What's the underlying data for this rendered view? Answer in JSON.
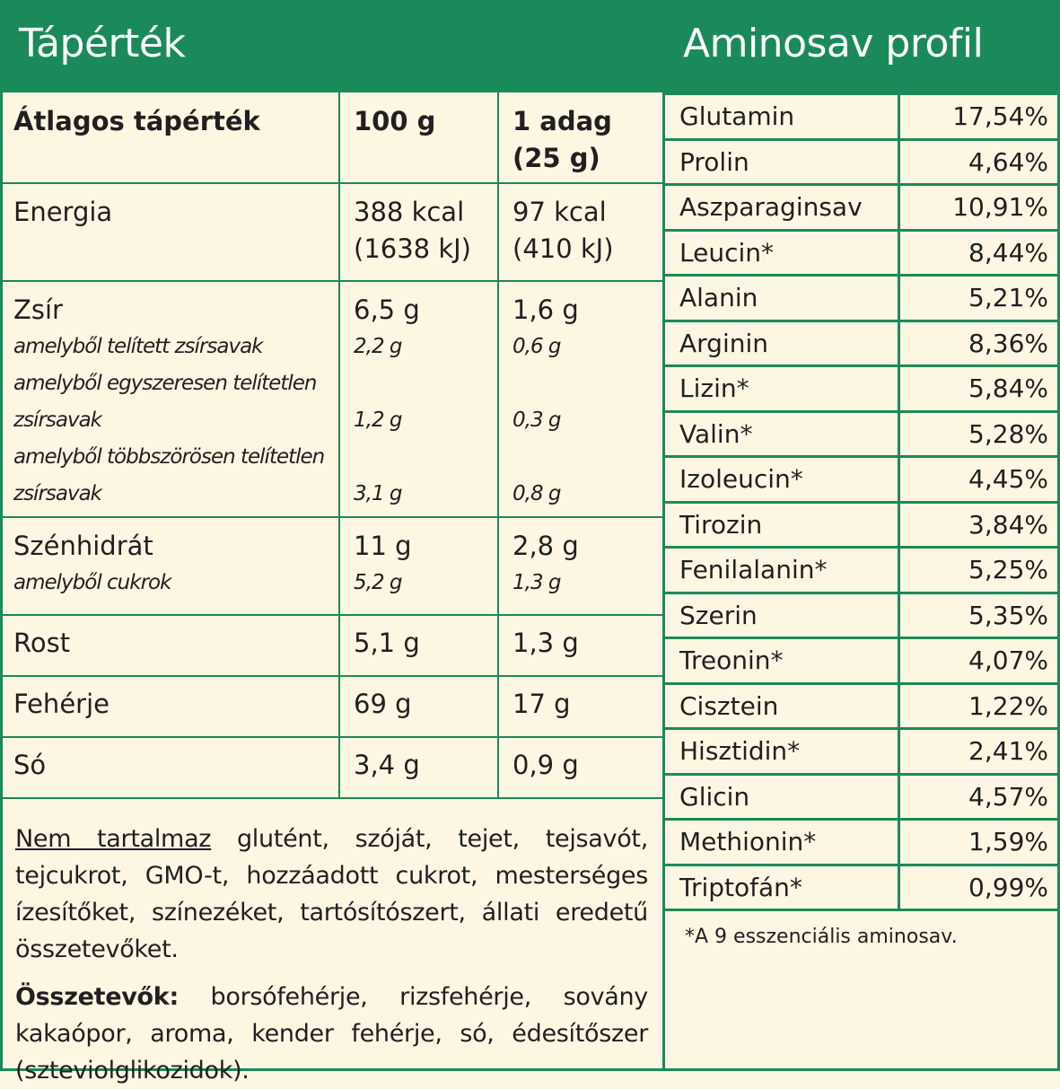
{
  "nutrition": {
    "title": "Tápérték",
    "headers": [
      "Átlagos tápérték",
      "100 g",
      "1 adag",
      "(25 g)"
    ],
    "energy": {
      "label": "Energia",
      "per100_kcal": "388 kcal",
      "per100_kj": "(1638 kJ)",
      "serving_kcal": "97 kcal",
      "serving_kj": "(410 kJ)"
    },
    "fat": {
      "label": "Zsír",
      "per100": "6,5 g",
      "serving": "1,6 g",
      "sat_label": "amelyből telített zsírsavak",
      "sat_per100": "2,2 g",
      "sat_serving": "0,6 g",
      "mono_label_1": "amelyből egyszeresen telítetlen",
      "mono_label_2": "zsírsavak",
      "mono_per100": "1,2 g",
      "mono_serving": "0,3 g",
      "poly_label_1": "amelyből többszörösen telítetlen",
      "poly_label_2": "zsírsavak",
      "poly_per100": "3,1 g",
      "poly_serving": "0,8 g"
    },
    "carb": {
      "label": "Szénhidrát",
      "per100": "11 g",
      "serving": "2,8 g",
      "sugar_label": "amelyből cukrok",
      "sugar_per100": "5,2 g",
      "sugar_serving": "1,3 g"
    },
    "fiber": {
      "label": "Rost",
      "per100": "5,1 g",
      "serving": "1,3 g"
    },
    "protein": {
      "label": "Fehérje",
      "per100": "69 g",
      "serving": "17 g"
    },
    "salt": {
      "label": "Só",
      "per100": "3,4 g",
      "serving": "0,9 g"
    },
    "free_from_label": "Nem tartalmaz",
    "free_from_text": " glutént, szóját, tejet, tejsavót, tejcukrot, GMO-t, hozzáadott cukrot, mesterséges ízesítőket, színezéket, tartósítószert, állati eredetű összetevőket.",
    "ingredients_label": "Összetevők:",
    "ingredients_text": " borsófehérje, rizsfehérje, sovány kakaópor, aroma, kender fehérje, só, édesítőszer (szteviolglikozidok)."
  },
  "amino": {
    "title": "Aminosav profil",
    "items": [
      {
        "name": "Glutamin",
        "value": "17,54%"
      },
      {
        "name": "Prolin",
        "value": "4,64%"
      },
      {
        "name": "Aszparaginsav",
        "value": "10,91%"
      },
      {
        "name": "Leucin*",
        "value": "8,44%"
      },
      {
        "name": "Alanin",
        "value": "5,21%"
      },
      {
        "name": "Arginin",
        "value": "8,36%"
      },
      {
        "name": "Lizin*",
        "value": "5,84%"
      },
      {
        "name": "Valin*",
        "value": "5,28%"
      },
      {
        "name": "Izoleucin*",
        "value": "4,45%"
      },
      {
        "name": "Tirozin",
        "value": "3,84%"
      },
      {
        "name": "Fenilalanin*",
        "value": "5,25%"
      },
      {
        "name": "Szerin",
        "value": "5,35%"
      },
      {
        "name": "Treonin*",
        "value": "4,07%"
      },
      {
        "name": "Cisztein",
        "value": "1,22%"
      },
      {
        "name": "Hisztidin*",
        "value": "2,41%"
      },
      {
        "name": "Glicin",
        "value": "4,57%"
      },
      {
        "name": "Methionin*",
        "value": "1,59%"
      },
      {
        "name": "Triptofán*",
        "value": "0,99%"
      }
    ],
    "footnote": "*A 9 esszenciális aminosav."
  },
  "colors": {
    "accent": "#1b8a5a",
    "background": "#fdf6e3"
  }
}
